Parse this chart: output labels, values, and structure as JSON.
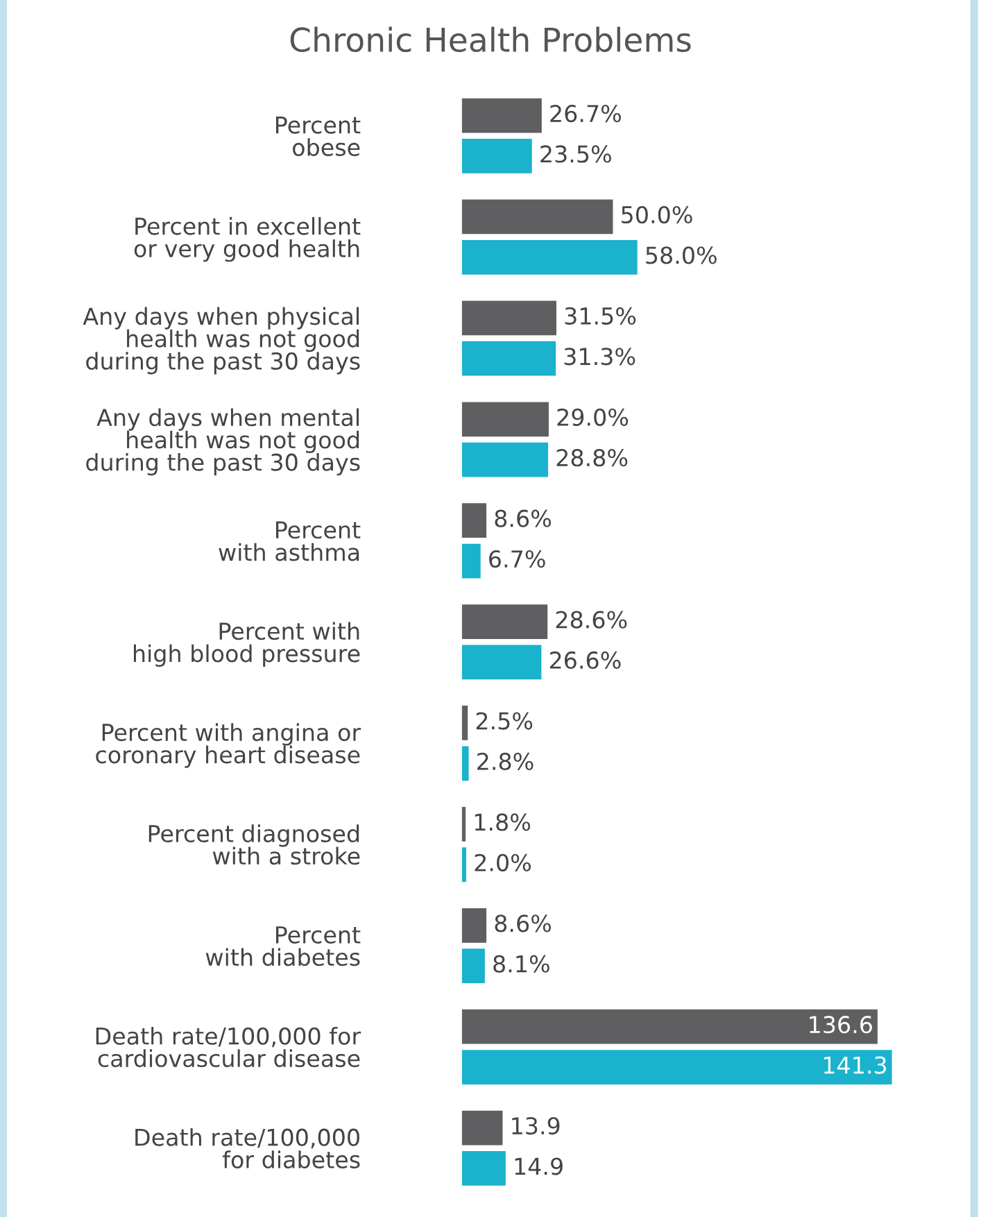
{
  "chart_data": {
    "type": "bar",
    "orientation": "horizontal",
    "title": "Chronic Health Problems",
    "categories": [
      "Percent\nobese",
      "Percent in excellent\nor very good health",
      "Any days when physical\nhealth was not good\nduring the past 30 days",
      "Any days when mental\nhealth was not good\nduring the past 30 days",
      "Percent\nwith asthma",
      "Percent with\nhigh blood pressure",
      "Percent with angina or\ncoronary heart disease",
      "Percent diagnosed\nwith a stroke",
      "Percent\nwith diabetes",
      "Death rate/100,000 for\ncardiovascular disease",
      "Death rate/100,000\nfor diabetes"
    ],
    "series": [
      {
        "color": "#5f5f62",
        "values": [
          26.7,
          50.0,
          31.5,
          29.0,
          8.6,
          28.6,
          2.5,
          1.8,
          8.6,
          136.6,
          13.9
        ],
        "value_labels": [
          "26.7%",
          "50.0%",
          "31.5%",
          "29.0%",
          "8.6%",
          "28.6%",
          "2.5%",
          "1.8%",
          "8.6%",
          "136.6",
          "13.9"
        ]
      },
      {
        "color": "#1ab2cc",
        "values": [
          23.5,
          58.0,
          31.3,
          28.8,
          6.7,
          26.6,
          2.8,
          2.0,
          8.1,
          141.3,
          14.9
        ],
        "value_labels": [
          "23.5%",
          "58.0%",
          "31.3%",
          "28.8%",
          "6.7%",
          "26.6%",
          "2.8%",
          "2.0%",
          "8.1%",
          "141.3",
          "14.9"
        ]
      }
    ],
    "tick_labels": "y",
    "grid": false,
    "legend": false
  }
}
